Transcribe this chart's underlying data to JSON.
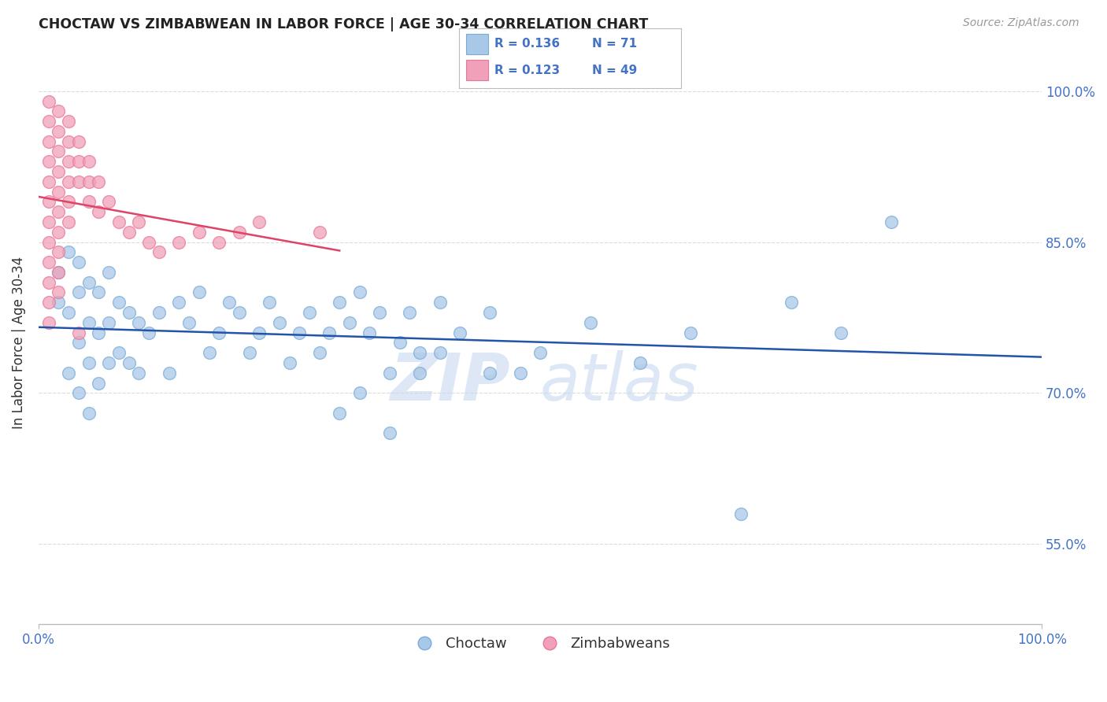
{
  "title": "CHOCTAW VS ZIMBABWEAN IN LABOR FORCE | AGE 30-34 CORRELATION CHART",
  "source_text": "Source: ZipAtlas.com",
  "ylabel": "In Labor Force | Age 30-34",
  "watermark": "ZIPatlas",
  "xlim": [
    0.0,
    1.0
  ],
  "ylim": [
    0.47,
    1.03
  ],
  "yticks": [
    0.55,
    0.7,
    0.85,
    1.0
  ],
  "ytick_labels": [
    "55.0%",
    "70.0%",
    "85.0%",
    "100.0%"
  ],
  "xtick_labels": [
    "0.0%",
    "100.0%"
  ],
  "blue_color": "#a8c8e8",
  "pink_color": "#f0a0b8",
  "blue_line_color": "#2255aa",
  "pink_line_color": "#dd4466",
  "blue_marker_edge": "#7aacda",
  "pink_marker_edge": "#e87898",
  "choctaw_x": [
    0.02,
    0.02,
    0.03,
    0.03,
    0.03,
    0.04,
    0.04,
    0.04,
    0.04,
    0.05,
    0.05,
    0.05,
    0.05,
    0.06,
    0.06,
    0.06,
    0.07,
    0.07,
    0.07,
    0.08,
    0.08,
    0.09,
    0.09,
    0.1,
    0.1,
    0.11,
    0.12,
    0.13,
    0.14,
    0.15,
    0.16,
    0.17,
    0.18,
    0.19,
    0.2,
    0.21,
    0.22,
    0.23,
    0.24,
    0.25,
    0.26,
    0.27,
    0.28,
    0.29,
    0.3,
    0.31,
    0.32,
    0.33,
    0.34,
    0.35,
    0.36,
    0.37,
    0.38,
    0.4,
    0.42,
    0.45,
    0.48,
    0.5,
    0.55,
    0.6,
    0.65,
    0.7,
    0.75,
    0.8,
    0.3,
    0.32,
    0.35,
    0.38,
    0.85,
    0.4,
    0.45
  ],
  "choctaw_y": [
    0.82,
    0.79,
    0.84,
    0.78,
    0.72,
    0.83,
    0.8,
    0.75,
    0.7,
    0.81,
    0.77,
    0.73,
    0.68,
    0.8,
    0.76,
    0.71,
    0.82,
    0.77,
    0.73,
    0.79,
    0.74,
    0.78,
    0.73,
    0.77,
    0.72,
    0.76,
    0.78,
    0.72,
    0.79,
    0.77,
    0.8,
    0.74,
    0.76,
    0.79,
    0.78,
    0.74,
    0.76,
    0.79,
    0.77,
    0.73,
    0.76,
    0.78,
    0.74,
    0.76,
    0.79,
    0.77,
    0.8,
    0.76,
    0.78,
    0.72,
    0.75,
    0.78,
    0.74,
    0.79,
    0.76,
    0.78,
    0.72,
    0.74,
    0.77,
    0.73,
    0.76,
    0.58,
    0.79,
    0.76,
    0.68,
    0.7,
    0.66,
    0.72,
    0.87,
    0.74,
    0.72
  ],
  "zimbabwean_x": [
    0.01,
    0.01,
    0.01,
    0.01,
    0.01,
    0.01,
    0.01,
    0.01,
    0.01,
    0.01,
    0.01,
    0.01,
    0.02,
    0.02,
    0.02,
    0.02,
    0.02,
    0.02,
    0.02,
    0.02,
    0.02,
    0.02,
    0.03,
    0.03,
    0.03,
    0.03,
    0.03,
    0.03,
    0.04,
    0.04,
    0.04,
    0.05,
    0.05,
    0.05,
    0.06,
    0.06,
    0.07,
    0.08,
    0.09,
    0.1,
    0.11,
    0.12,
    0.14,
    0.16,
    0.18,
    0.2,
    0.22,
    0.28,
    0.04
  ],
  "zimbabwean_y": [
    0.99,
    0.97,
    0.95,
    0.93,
    0.91,
    0.89,
    0.87,
    0.85,
    0.83,
    0.81,
    0.79,
    0.77,
    0.98,
    0.96,
    0.94,
    0.92,
    0.9,
    0.88,
    0.86,
    0.84,
    0.82,
    0.8,
    0.97,
    0.95,
    0.93,
    0.91,
    0.89,
    0.87,
    0.95,
    0.93,
    0.91,
    0.93,
    0.91,
    0.89,
    0.91,
    0.88,
    0.89,
    0.87,
    0.86,
    0.87,
    0.85,
    0.84,
    0.85,
    0.86,
    0.85,
    0.86,
    0.87,
    0.86,
    0.76
  ],
  "grid_color": "#cccccc",
  "background_color": "#ffffff",
  "title_color": "#222222",
  "axis_color": "#4472c4",
  "text_color": "#333333"
}
